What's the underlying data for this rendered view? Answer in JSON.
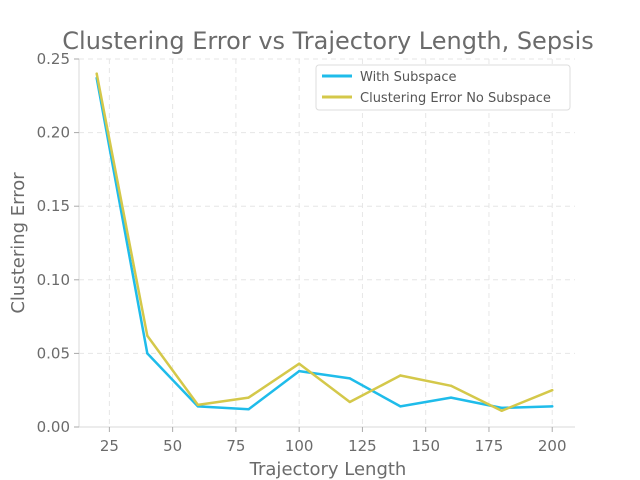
{
  "chart_data": {
    "type": "line",
    "title": "Clustering Error vs Trajectory Length, Sepsis",
    "xlabel": "Trajectory Length",
    "ylabel": "Clustering Error",
    "xlim": [
      13,
      209
    ],
    "ylim": [
      0,
      0.25
    ],
    "xticks": [
      25,
      50,
      75,
      100,
      125,
      150,
      175,
      200
    ],
    "yticks": [
      0.0,
      0.05,
      0.1,
      0.15,
      0.2,
      0.25
    ],
    "ytick_labels": [
      "0.00",
      "0.05",
      "0.10",
      "0.15",
      "0.20",
      "0.25"
    ],
    "grid": true,
    "legend_position": "top-right",
    "x": [
      20,
      40,
      60,
      80,
      100,
      120,
      140,
      160,
      180,
      200
    ],
    "series": [
      {
        "name": "With Subspace",
        "color": "#1fbcea",
        "values": [
          0.237,
          0.05,
          0.014,
          0.012,
          0.038,
          0.033,
          0.014,
          0.02,
          0.013,
          0.014
        ]
      },
      {
        "name": "Clustering Error No Subspace",
        "color": "#d4c84a",
        "values": [
          0.24,
          0.062,
          0.015,
          0.02,
          0.043,
          0.017,
          0.035,
          0.028,
          0.011,
          0.025
        ]
      }
    ]
  }
}
